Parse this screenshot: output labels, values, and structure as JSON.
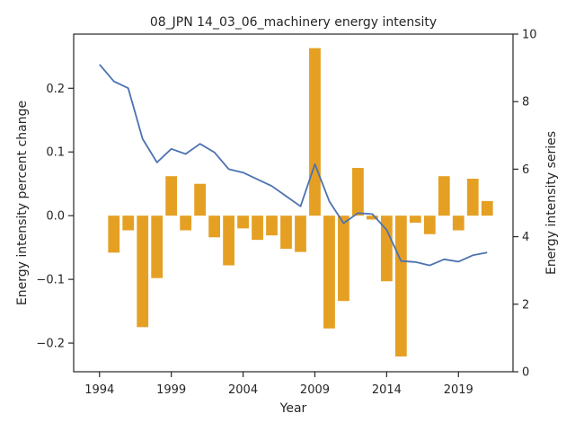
{
  "chart_data": {
    "type": "bar+line",
    "title": "08_JPN 14_03_06_machinery energy intensity",
    "xlabel": "Year",
    "ylabel_left": "Energy intensity percent change",
    "ylabel_right": "Energy intensity series",
    "xlim": [
      1992.2,
      2022.8
    ],
    "ylim_left": [
      -0.245,
      0.285
    ],
    "ylim_right": [
      0,
      10
    ],
    "x_ticks": [
      1994,
      1999,
      2004,
      2009,
      2014,
      2019
    ],
    "y_ticks_left": [
      -0.2,
      -0.1,
      0.0,
      0.1,
      0.2
    ],
    "y_ticks_left_labels": [
      "−0.2",
      "−0.1",
      "0.0",
      "0.1",
      "0.2"
    ],
    "y_ticks_right": [
      0,
      2,
      4,
      6,
      8,
      10
    ],
    "bar_color": "#e5a024",
    "line_color": "#4c72b0",
    "bars": {
      "name": "Energy intensity percent change",
      "x": [
        1995,
        1996,
        1997,
        1998,
        1999,
        2000,
        2001,
        2002,
        2003,
        2004,
        2005,
        2006,
        2007,
        2008,
        2009,
        2010,
        2011,
        2012,
        2013,
        2014,
        2015,
        2016,
        2017,
        2018,
        2019,
        2020,
        2021
      ],
      "values": [
        -0.058,
        -0.023,
        -0.175,
        -0.098,
        0.062,
        -0.023,
        0.05,
        -0.034,
        -0.078,
        -0.02,
        -0.038,
        -0.031,
        -0.052,
        -0.057,
        0.263,
        -0.177,
        -0.134,
        0.075,
        -0.006,
        -0.103,
        -0.221,
        -0.011,
        -0.029,
        0.062,
        -0.023,
        0.058,
        0.023
      ]
    },
    "line": {
      "name": "Energy intensity series",
      "x": [
        1994,
        1995,
        1996,
        1997,
        1998,
        1999,
        2000,
        2001,
        2002,
        2003,
        2004,
        2005,
        2006,
        2007,
        2008,
        2009,
        2010,
        2011,
        2012,
        2013,
        2014,
        2015,
        2016,
        2017,
        2018,
        2019,
        2020,
        2021
      ],
      "values": [
        9.1,
        8.6,
        8.4,
        6.9,
        6.2,
        6.6,
        6.45,
        6.75,
        6.5,
        6.0,
        5.9,
        5.7,
        5.5,
        5.2,
        4.9,
        6.15,
        5.05,
        4.4,
        4.7,
        4.67,
        4.2,
        3.28,
        3.25,
        3.15,
        3.33,
        3.26,
        3.45,
        3.53
      ]
    }
  }
}
